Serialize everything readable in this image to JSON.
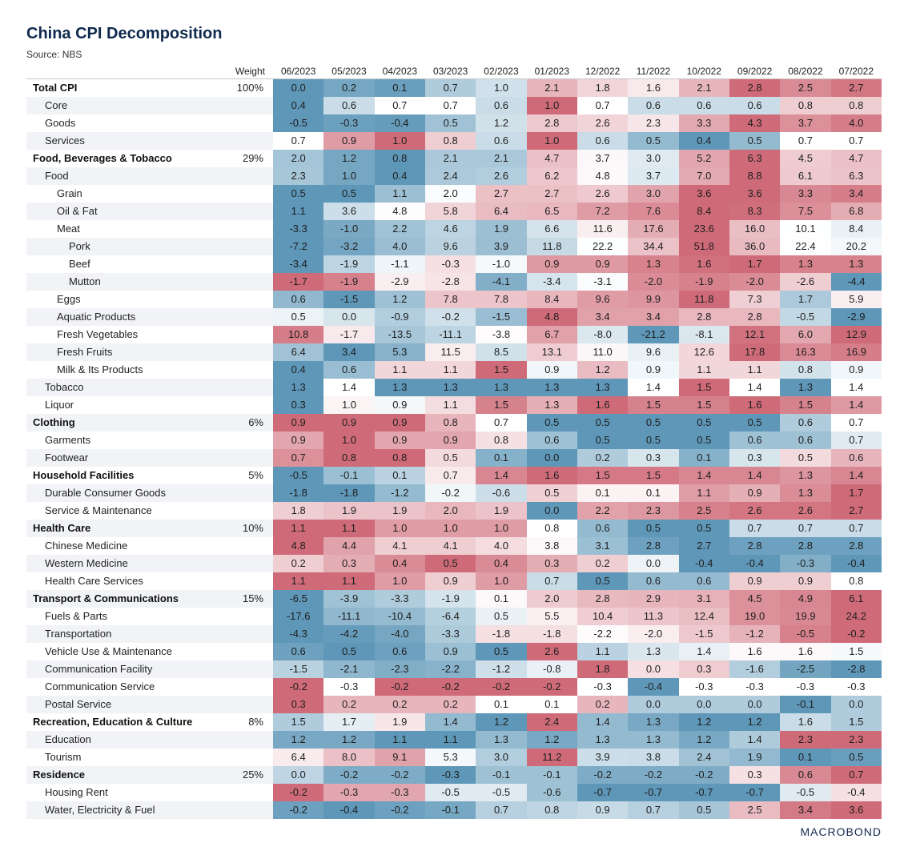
{
  "title": "China CPI Decomposition",
  "source": "Source: NBS",
  "logo": "MACROBOND",
  "chart_data": {
    "type": "table",
    "title": "China CPI Decomposition",
    "subtitle": "Source: NBS",
    "colors": {
      "low": "#5e97b8",
      "mid": "#ffffff",
      "high": "#cf6b78"
    },
    "weight_header": "Weight",
    "columns": [
      "06/2023",
      "05/2023",
      "04/2023",
      "03/2023",
      "02/2023",
      "01/2023",
      "12/2022",
      "11/2022",
      "10/2022",
      "09/2022",
      "08/2022",
      "07/2022"
    ],
    "rows": [
      {
        "label": "Total CPI",
        "level": 0,
        "weight": "100%",
        "values": [
          "0.0",
          "0.2",
          "0.1",
          "0.7",
          "1.0",
          "2.1",
          "1.8",
          "1.6",
          "2.1",
          "2.8",
          "2.5",
          "2.7"
        ]
      },
      {
        "label": "Core",
        "level": 1,
        "weight": "",
        "values": [
          "0.4",
          "0.6",
          "0.7",
          "0.7",
          "0.6",
          "1.0",
          "0.7",
          "0.6",
          "0.6",
          "0.6",
          "0.8",
          "0.8"
        ]
      },
      {
        "label": "Goods",
        "level": 1,
        "weight": "",
        "values": [
          "-0.5",
          "-0.3",
          "-0.4",
          "0.5",
          "1.2",
          "2.8",
          "2.6",
          "2.3",
          "3.3",
          "4.3",
          "3.7",
          "4.0"
        ]
      },
      {
        "label": "Services",
        "level": 1,
        "weight": "",
        "values": [
          "0.7",
          "0.9",
          "1.0",
          "0.8",
          "0.6",
          "1.0",
          "0.6",
          "0.5",
          "0.4",
          "0.5",
          "0.7",
          "0.7"
        ]
      },
      {
        "label": "Food, Beverages & Tobacco",
        "level": 0,
        "weight": "29%",
        "values": [
          "2.0",
          "1.2",
          "0.8",
          "2.1",
          "2.1",
          "4.7",
          "3.7",
          "3.0",
          "5.2",
          "6.3",
          "4.5",
          "4.7"
        ]
      },
      {
        "label": "Food",
        "level": 1,
        "weight": "",
        "values": [
          "2.3",
          "1.0",
          "0.4",
          "2.4",
          "2.6",
          "6.2",
          "4.8",
          "3.7",
          "7.0",
          "8.8",
          "6.1",
          "6.3"
        ]
      },
      {
        "label": "Grain",
        "level": 2,
        "weight": "",
        "values": [
          "0.5",
          "0.5",
          "1.1",
          "2.0",
          "2.7",
          "2.7",
          "2.6",
          "3.0",
          "3.6",
          "3.6",
          "3.3",
          "3.4"
        ]
      },
      {
        "label": "Oil & Fat",
        "level": 2,
        "weight": "",
        "values": [
          "1.1",
          "3.6",
          "4.8",
          "5.8",
          "6.4",
          "6.5",
          "7.2",
          "7.6",
          "8.4",
          "8.3",
          "7.5",
          "6.8"
        ]
      },
      {
        "label": "Meat",
        "level": 2,
        "weight": "",
        "values": [
          "-3.3",
          "-1.0",
          "2.2",
          "4.6",
          "1.9",
          "6.6",
          "11.6",
          "17.6",
          "23.6",
          "16.0",
          "10.1",
          "8.4"
        ]
      },
      {
        "label": "Pork",
        "level": 3,
        "weight": "",
        "values": [
          "-7.2",
          "-3.2",
          "4.0",
          "9.6",
          "3.9",
          "11.8",
          "22.2",
          "34.4",
          "51.8",
          "36.0",
          "22.4",
          "20.2"
        ]
      },
      {
        "label": "Beef",
        "level": 3,
        "weight": "",
        "values": [
          "-3.4",
          "-1.9",
          "-1.1",
          "-0.3",
          "-1.0",
          "0.9",
          "0.9",
          "1.3",
          "1.6",
          "1.7",
          "1.3",
          "1.3"
        ]
      },
      {
        "label": "Mutton",
        "level": 3,
        "weight": "",
        "values": [
          "-1.7",
          "-1.9",
          "-2.9",
          "-2.8",
          "-4.1",
          "-3.4",
          "-3.1",
          "-2.0",
          "-1.9",
          "-2.0",
          "-2.6",
          "-4.4"
        ]
      },
      {
        "label": "Eggs",
        "level": 2,
        "weight": "",
        "values": [
          "0.6",
          "-1.5",
          "1.2",
          "7.8",
          "7.8",
          "8.4",
          "9.6",
          "9.9",
          "11.8",
          "7.3",
          "1.7",
          "5.9"
        ]
      },
      {
        "label": "Aquatic Products",
        "level": 2,
        "weight": "",
        "values": [
          "0.5",
          "0.0",
          "-0.9",
          "-0.2",
          "-1.5",
          "4.8",
          "3.4",
          "3.4",
          "2.8",
          "2.8",
          "-0.5",
          "-2.9"
        ]
      },
      {
        "label": "Fresh Vegetables",
        "level": 2,
        "weight": "",
        "values": [
          "10.8",
          "-1.7",
          "-13.5",
          "-11.1",
          "-3.8",
          "6.7",
          "-8.0",
          "-21.2",
          "-8.1",
          "12.1",
          "6.0",
          "12.9"
        ]
      },
      {
        "label": "Fresh Fruits",
        "level": 2,
        "weight": "",
        "values": [
          "6.4",
          "3.4",
          "5.3",
          "11.5",
          "8.5",
          "13.1",
          "11.0",
          "9.6",
          "12.6",
          "17.8",
          "16.3",
          "16.9"
        ]
      },
      {
        "label": "Milk & Its Products",
        "level": 2,
        "weight": "",
        "values": [
          "0.4",
          "0.6",
          "1.1",
          "1.1",
          "1.5",
          "0.9",
          "1.2",
          "0.9",
          "1.1",
          "1.1",
          "0.8",
          "0.9"
        ]
      },
      {
        "label": "Tobacco",
        "level": 1,
        "weight": "",
        "values": [
          "1.3",
          "1.4",
          "1.3",
          "1.3",
          "1.3",
          "1.3",
          "1.3",
          "1.4",
          "1.5",
          "1.4",
          "1.3",
          "1.4"
        ]
      },
      {
        "label": "Liquor",
        "level": 1,
        "weight": "",
        "values": [
          "0.3",
          "1.0",
          "0.9",
          "1.1",
          "1.5",
          "1.3",
          "1.6",
          "1.5",
          "1.5",
          "1.6",
          "1.5",
          "1.4"
        ]
      },
      {
        "label": "Clothing",
        "level": 0,
        "weight": "6%",
        "values": [
          "0.9",
          "0.9",
          "0.9",
          "0.8",
          "0.7",
          "0.5",
          "0.5",
          "0.5",
          "0.5",
          "0.5",
          "0.6",
          "0.7"
        ]
      },
      {
        "label": "Garments",
        "level": 1,
        "weight": "",
        "values": [
          "0.9",
          "1.0",
          "0.9",
          "0.9",
          "0.8",
          "0.6",
          "0.5",
          "0.5",
          "0.5",
          "0.6",
          "0.6",
          "0.7"
        ]
      },
      {
        "label": "Footwear",
        "level": 1,
        "weight": "",
        "values": [
          "0.7",
          "0.8",
          "0.8",
          "0.5",
          "0.1",
          "0.0",
          "0.2",
          "0.3",
          "0.1",
          "0.3",
          "0.5",
          "0.6"
        ]
      },
      {
        "label": "Household Facilities",
        "level": 0,
        "weight": "5%",
        "values": [
          "-0.5",
          "-0.1",
          "0.1",
          "0.7",
          "1.4",
          "1.6",
          "1.5",
          "1.5",
          "1.4",
          "1.4",
          "1.3",
          "1.4"
        ]
      },
      {
        "label": "Durable Consumer Goods",
        "level": 1,
        "weight": "",
        "values": [
          "-1.8",
          "-1.8",
          "-1.2",
          "-0.2",
          "-0.6",
          "0.5",
          "0.1",
          "0.1",
          "1.1",
          "0.9",
          "1.3",
          "1.7"
        ]
      },
      {
        "label": "Service & Maintenance",
        "level": 1,
        "weight": "",
        "values": [
          "1.8",
          "1.9",
          "1.9",
          "2.0",
          "1.9",
          "0.0",
          "2.2",
          "2.3",
          "2.5",
          "2.6",
          "2.6",
          "2.7"
        ]
      },
      {
        "label": "Health Care",
        "level": 0,
        "weight": "10%",
        "values": [
          "1.1",
          "1.1",
          "1.0",
          "1.0",
          "1.0",
          "0.8",
          "0.6",
          "0.5",
          "0.5",
          "0.7",
          "0.7",
          "0.7"
        ]
      },
      {
        "label": "Chinese Medicine",
        "level": 1,
        "weight": "",
        "values": [
          "4.8",
          "4.4",
          "4.1",
          "4.1",
          "4.0",
          "3.8",
          "3.1",
          "2.8",
          "2.7",
          "2.8",
          "2.8",
          "2.8"
        ]
      },
      {
        "label": "Western Medicine",
        "level": 1,
        "weight": "",
        "values": [
          "0.2",
          "0.3",
          "0.4",
          "0.5",
          "0.4",
          "0.3",
          "0.2",
          "0.0",
          "-0.4",
          "-0.4",
          "-0.3",
          "-0.4"
        ]
      },
      {
        "label": "Health Care Services",
        "level": 1,
        "weight": "",
        "values": [
          "1.1",
          "1.1",
          "1.0",
          "0.9",
          "1.0",
          "0.7",
          "0.5",
          "0.6",
          "0.6",
          "0.9",
          "0.9",
          "0.8"
        ]
      },
      {
        "label": "Transport & Communications",
        "level": 0,
        "weight": "15%",
        "values": [
          "-6.5",
          "-3.9",
          "-3.3",
          "-1.9",
          "0.1",
          "2.0",
          "2.8",
          "2.9",
          "3.1",
          "4.5",
          "4.9",
          "6.1"
        ]
      },
      {
        "label": "Fuels & Parts",
        "level": 1,
        "weight": "",
        "values": [
          "-17.6",
          "-11.1",
          "-10.4",
          "-6.4",
          "0.5",
          "5.5",
          "10.4",
          "11.3",
          "12.4",
          "19.0",
          "19.9",
          "24.2"
        ]
      },
      {
        "label": "Transportation",
        "level": 1,
        "weight": "",
        "values": [
          "-4.3",
          "-4.2",
          "-4.0",
          "-3.3",
          "-1.8",
          "-1.8",
          "-2.2",
          "-2.0",
          "-1.5",
          "-1.2",
          "-0.5",
          "-0.2"
        ]
      },
      {
        "label": "Vehicle Use & Maintenance",
        "level": 1,
        "weight": "",
        "values": [
          "0.6",
          "0.5",
          "0.6",
          "0.9",
          "0.5",
          "2.6",
          "1.1",
          "1.3",
          "1.4",
          "1.6",
          "1.6",
          "1.5"
        ]
      },
      {
        "label": "Communication Facility",
        "level": 1,
        "weight": "",
        "values": [
          "-1.5",
          "-2.1",
          "-2.3",
          "-2.2",
          "-1.2",
          "-0.8",
          "1.8",
          "0.0",
          "0.3",
          "-1.6",
          "-2.5",
          "-2.8"
        ]
      },
      {
        "label": "Communication Service",
        "level": 1,
        "weight": "",
        "values": [
          "-0.2",
          "-0.3",
          "-0.2",
          "-0.2",
          "-0.2",
          "-0.2",
          "-0.3",
          "-0.4",
          "-0.3",
          "-0.3",
          "-0.3",
          "-0.3"
        ]
      },
      {
        "label": "Postal Service",
        "level": 1,
        "weight": "",
        "values": [
          "0.3",
          "0.2",
          "0.2",
          "0.2",
          "0.1",
          "0.1",
          "0.2",
          "0.0",
          "0.0",
          "0.0",
          "-0.1",
          "0.0"
        ]
      },
      {
        "label": "Recreation, Education & Culture",
        "level": 0,
        "weight": "8%",
        "values": [
          "1.5",
          "1.7",
          "1.9",
          "1.4",
          "1.2",
          "2.4",
          "1.4",
          "1.3",
          "1.2",
          "1.2",
          "1.6",
          "1.5"
        ]
      },
      {
        "label": "Education",
        "level": 1,
        "weight": "",
        "values": [
          "1.2",
          "1.2",
          "1.1",
          "1.1",
          "1.3",
          "1.2",
          "1.3",
          "1.3",
          "1.2",
          "1.4",
          "2.3",
          "2.3"
        ]
      },
      {
        "label": "Tourism",
        "level": 1,
        "weight": "",
        "values": [
          "6.4",
          "8.0",
          "9.1",
          "5.3",
          "3.0",
          "11.2",
          "3.9",
          "3.8",
          "2.4",
          "1.9",
          "0.1",
          "0.5"
        ]
      },
      {
        "label": "Residence",
        "level": 0,
        "weight": "25%",
        "values": [
          "0.0",
          "-0.2",
          "-0.2",
          "-0.3",
          "-0.1",
          "-0.1",
          "-0.2",
          "-0.2",
          "-0.2",
          "0.3",
          "0.6",
          "0.7"
        ]
      },
      {
        "label": "Housing Rent",
        "level": 1,
        "weight": "",
        "values": [
          "-0.2",
          "-0.3",
          "-0.3",
          "-0.5",
          "-0.5",
          "-0.6",
          "-0.7",
          "-0.7",
          "-0.7",
          "-0.7",
          "-0.5",
          "-0.4"
        ]
      },
      {
        "label": "Water, Electricity & Fuel",
        "level": 1,
        "weight": "",
        "values": [
          "-0.2",
          "-0.4",
          "-0.2",
          "-0.1",
          "0.7",
          "0.8",
          "0.9",
          "0.7",
          "0.5",
          "2.5",
          "3.4",
          "3.6"
        ]
      }
    ]
  }
}
